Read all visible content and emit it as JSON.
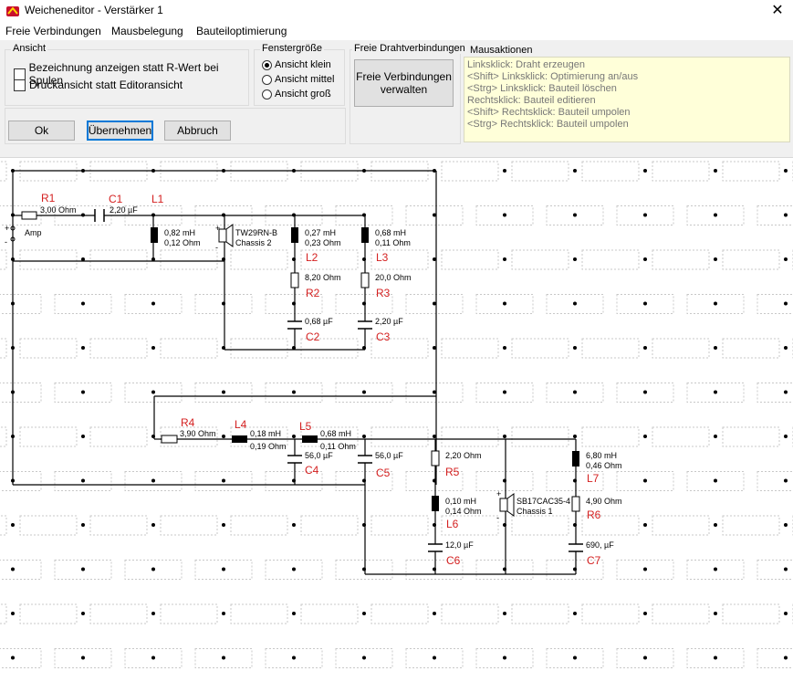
{
  "window": {
    "title": "Weicheneditor - Verstärker 1",
    "close_glyph": "✕"
  },
  "menu": {
    "items": [
      "Freie Verbindungen",
      "Mausbelegung",
      "Bauteiloptimierung"
    ]
  },
  "ansicht": {
    "title": "Ansicht",
    "check1": "Bezeichnung anzeigen statt R-Wert bei Spulen",
    "check2": "Druckansicht statt Editoransicht"
  },
  "fenster": {
    "title": "Fenstergröße",
    "opt1": "Ansicht klein",
    "opt2": "Ansicht mittel",
    "opt3": "Ansicht groß",
    "selected": "Ansicht klein"
  },
  "draht": {
    "title": "Freie Drahtverbindungen",
    "button_line1": "Freie Verbindungen",
    "button_line2": "verwalten"
  },
  "buttons": {
    "ok": "Ok",
    "apply": "Übernehmen",
    "cancel": "Abbruch"
  },
  "maus": {
    "title": "Mausaktionen",
    "lines": [
      "Linksklick: Draht erzeugen",
      "<Shift> Linksklick: Optimierung an/aus",
      "<Strg> Linksklick: Bauteil löschen",
      "Rechtsklick: Bauteil editieren",
      "<Shift> Rechtsklick: Bauteil umpolen",
      "<Strg> Rechtsklick: Bauteil umpolen"
    ]
  },
  "colors": {
    "accent": "#0078d7",
    "label_red": "#d42020",
    "mouse_bg": "#ffffd9"
  },
  "schematic": {
    "amp": "Amp",
    "plus": "+",
    "minus": "-",
    "r1": {
      "name": "R1",
      "value": "3,00 Ohm"
    },
    "c1": {
      "name": "C1",
      "value": "2,20 µF"
    },
    "l1": {
      "name": "L1",
      "value1": "0,82 mH",
      "value2": "0,12 Ohm"
    },
    "tw": {
      "name": "TW29RN-B",
      "sub": "Chassis 2"
    },
    "l2": {
      "name": "L2",
      "value1": "0,27 mH",
      "value2": "0,23 Ohm"
    },
    "l3": {
      "name": "L3",
      "value1": "0,68 mH",
      "value2": "0,11 Ohm"
    },
    "r2": {
      "name": "R2",
      "value": "8,20 Ohm"
    },
    "r3": {
      "name": "R3",
      "value": "20,0 Ohm"
    },
    "c2": {
      "name": "C2",
      "value": "0,68 µF"
    },
    "c3": {
      "name": "C3",
      "value": "2,20 µF"
    },
    "r4": {
      "name": "R4",
      "value": "3,90 Ohm"
    },
    "l4": {
      "name": "L4",
      "value1": "0,18 mH",
      "value2": "0,19 Ohm"
    },
    "l5": {
      "name": "L5",
      "value1": "0,68 mH",
      "value2": "0,11 Ohm"
    },
    "c4": {
      "name": "C4",
      "value": "56,0 µF"
    },
    "c5": {
      "name": "C5",
      "value": "56,0 µF"
    },
    "r5": {
      "name": "R5",
      "value": "2,20 Ohm"
    },
    "l6": {
      "name": "L6",
      "value1": "0,10 mH",
      "value2": "0,14 Ohm"
    },
    "c6": {
      "name": "C6",
      "value": "12,0 µF"
    },
    "sb": {
      "name": "SB17CAC35-4",
      "sub": "Chassis 1"
    },
    "l7": {
      "name": "L7",
      "value1": "6,80 mH",
      "value2": "0,46 Ohm"
    },
    "r6": {
      "name": "R6",
      "value": "4,90 Ohm"
    },
    "c7": {
      "name": "C7",
      "value": "690, µF"
    }
  }
}
